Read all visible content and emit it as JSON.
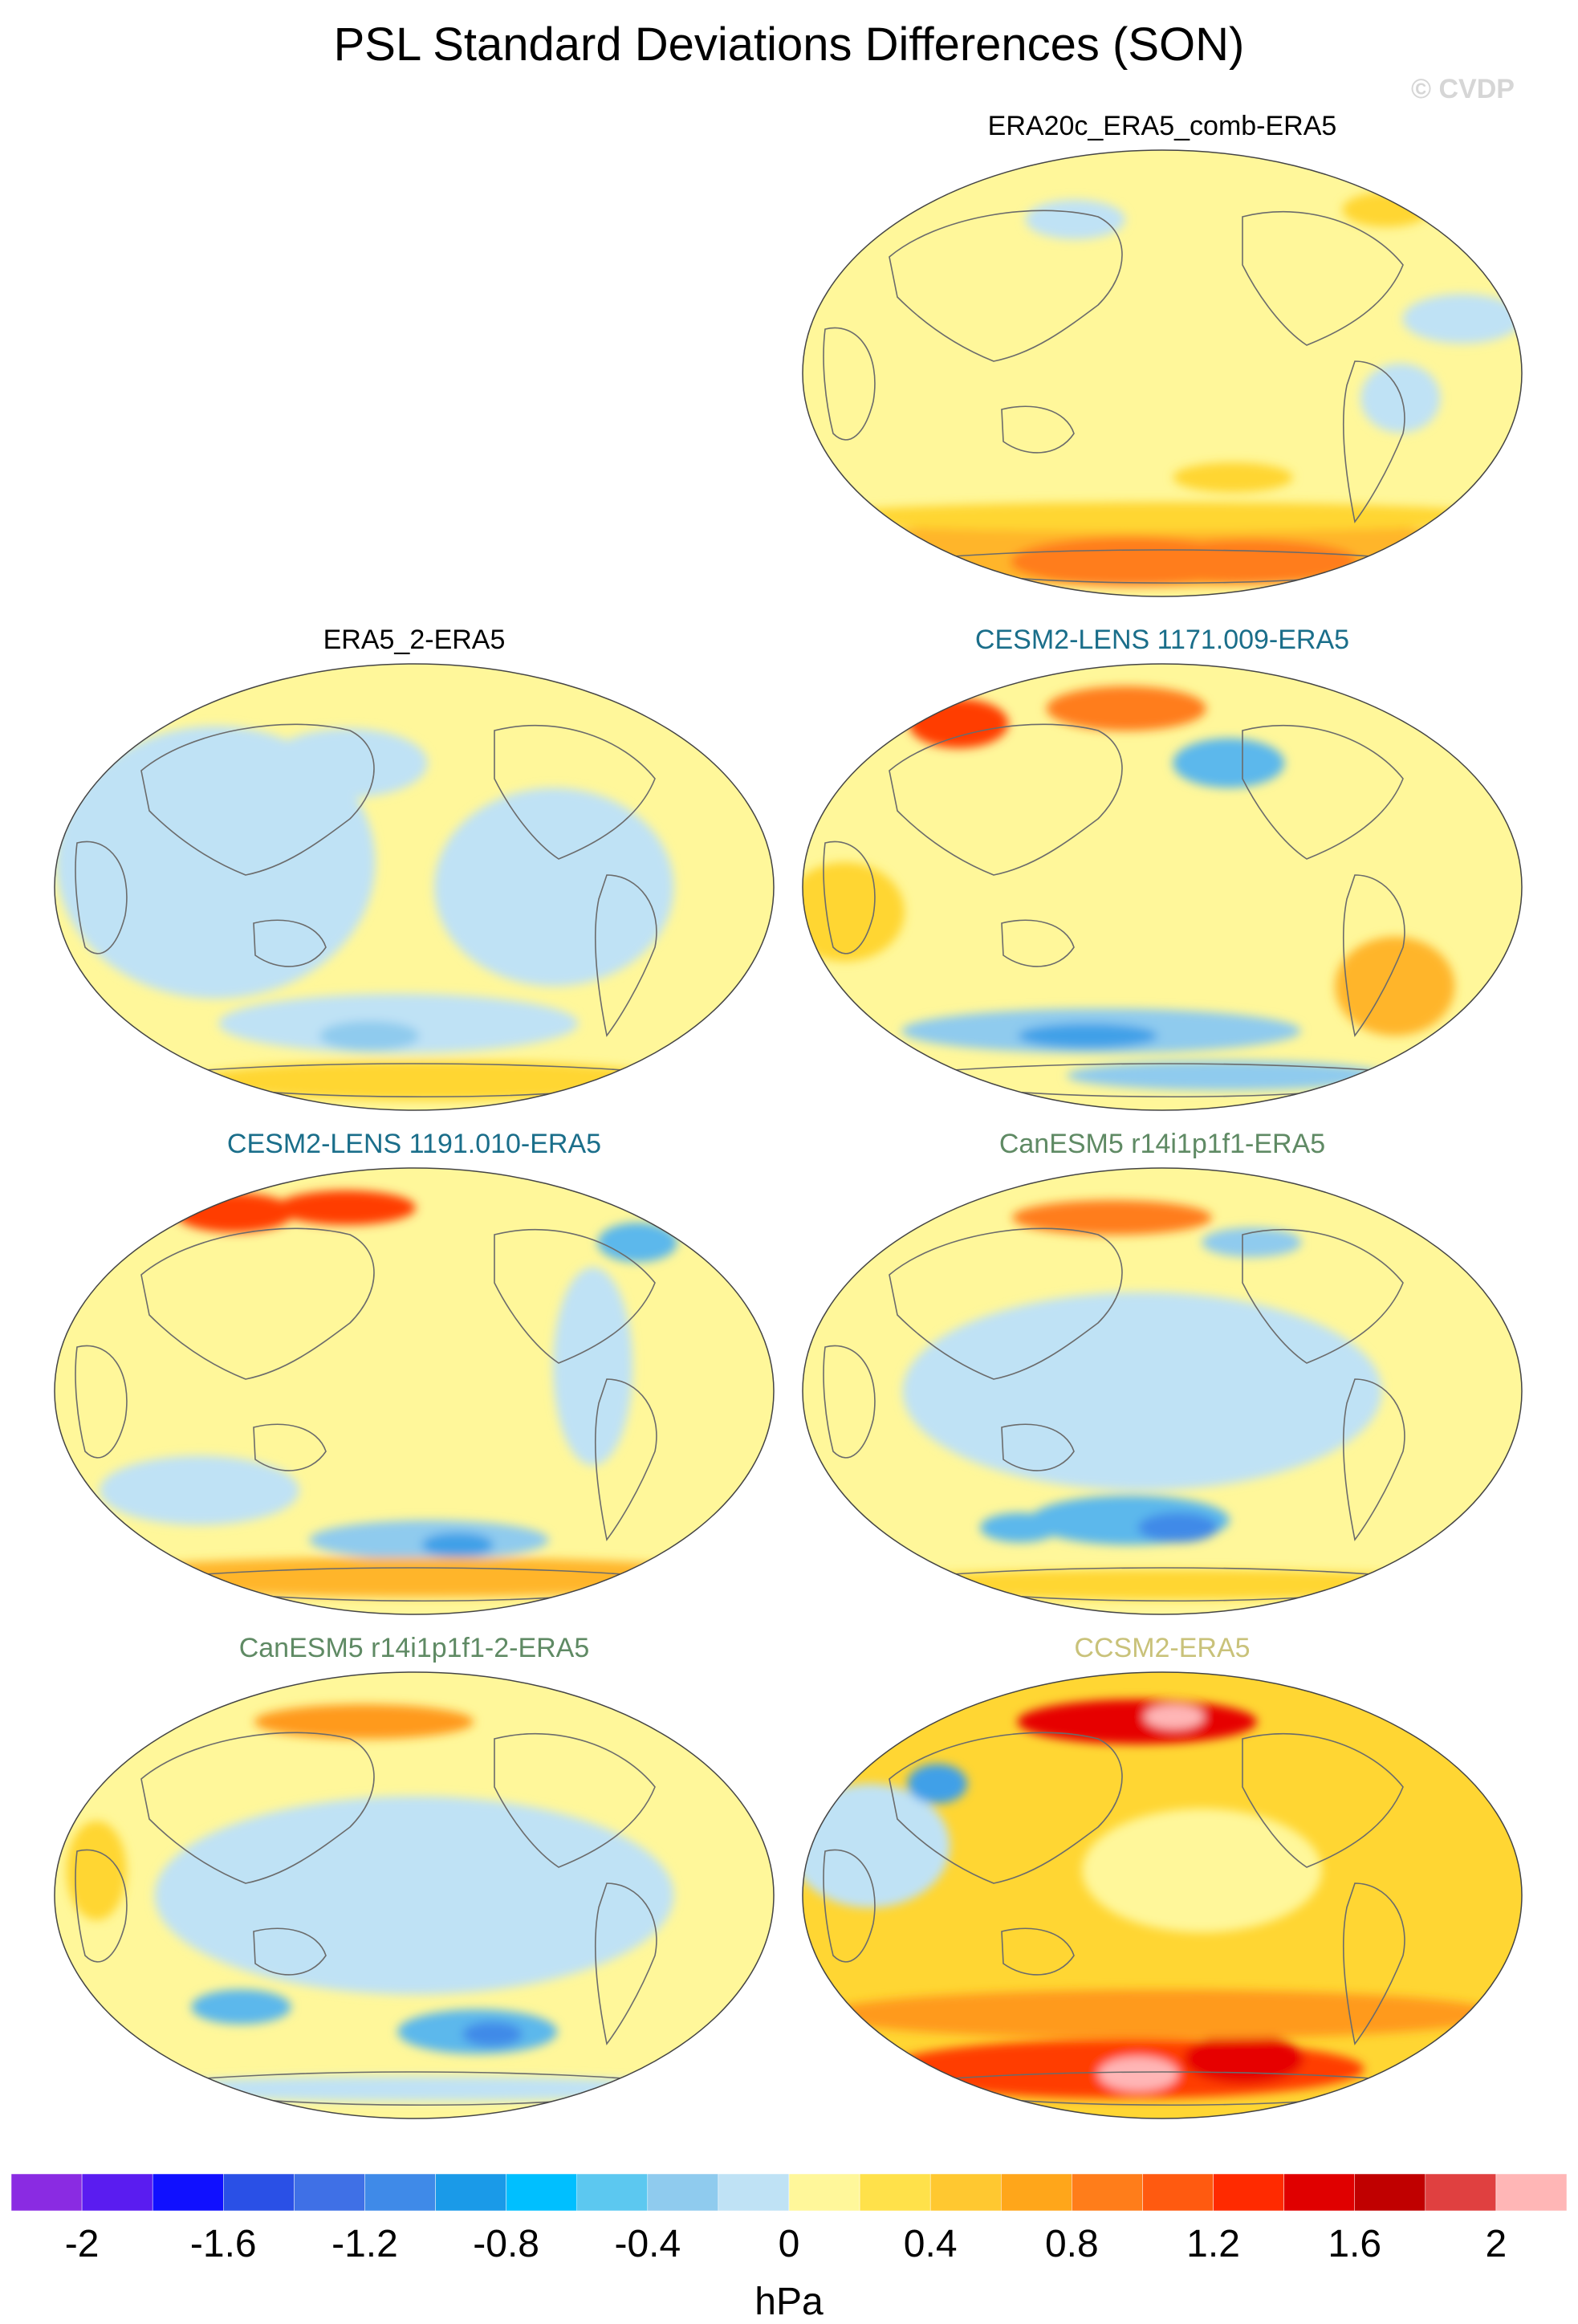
{
  "title": "PSL Standard Deviations Differences (SON)",
  "watermark": "© CVDP",
  "panels": [
    {
      "title": "ERA20c_ERA5_comb-ERA5",
      "title_color": "#000000",
      "base_color": "#fff79a",
      "blobs": [
        {
          "lon": 0,
          "lat": -72,
          "rx": 170,
          "ry": 14,
          "c": "#ffb52a"
        },
        {
          "lon": -30,
          "lat": -76,
          "rx": 60,
          "ry": 10,
          "c": "#ff7d1a"
        },
        {
          "lon": 80,
          "lat": -76,
          "rx": 55,
          "ry": 9,
          "c": "#ff7d1a"
        },
        {
          "lon": 0,
          "lat": -58,
          "rx": 175,
          "ry": 6,
          "c": "#ffd633"
        },
        {
          "lon": 155,
          "lat": 22,
          "rx": 30,
          "ry": 10,
          "c": "#bfe2f5"
        },
        {
          "lon": 120,
          "lat": -10,
          "rx": 20,
          "ry": 14,
          "c": "#bfe2f5"
        },
        {
          "lon": -60,
          "lat": 62,
          "rx": 25,
          "ry": 8,
          "c": "#bfe2f5"
        },
        {
          "lon": 165,
          "lat": 66,
          "rx": 22,
          "ry": 7,
          "c": "#ffd633"
        },
        {
          "lon": 40,
          "lat": -42,
          "rx": 30,
          "ry": 6,
          "c": "#ffd633"
        }
      ]
    },
    {
      "title": "ERA5_2-ERA5",
      "title_color": "#000000",
      "base_color": "#fff79a",
      "blobs": [
        {
          "lon": -100,
          "lat": 10,
          "rx": 80,
          "ry": 55,
          "c": "#bfe2f5"
        },
        {
          "lon": 70,
          "lat": 0,
          "rx": 60,
          "ry": 40,
          "c": "#bfe2f5"
        },
        {
          "lon": -10,
          "lat": -55,
          "rx": 90,
          "ry": 12,
          "c": "#bfe2f5"
        },
        {
          "lon": -30,
          "lat": -60,
          "rx": 25,
          "ry": 6,
          "c": "#8fcbee"
        },
        {
          "lon": 20,
          "lat": -78,
          "rx": 120,
          "ry": 8,
          "c": "#ffd633"
        },
        {
          "lon": -40,
          "lat": 50,
          "rx": 40,
          "ry": 14,
          "c": "#bfe2f5"
        }
      ]
    },
    {
      "title": "CESM2-LENS 1171.009-ERA5",
      "title_color": "#1a6e8a",
      "base_color": "#fff79a",
      "blobs": [
        {
          "lon": -150,
          "lat": 66,
          "rx": 25,
          "ry": 10,
          "c": "#ff3d00"
        },
        {
          "lon": -30,
          "lat": 72,
          "rx": 40,
          "ry": 9,
          "c": "#ff7d1a"
        },
        {
          "lon": -40,
          "lat": -58,
          "rx": 100,
          "ry": 9,
          "c": "#8fcbee"
        },
        {
          "lon": -50,
          "lat": -60,
          "rx": 35,
          "ry": 5,
          "c": "#3fa0e8"
        },
        {
          "lon": 130,
          "lat": -40,
          "rx": 30,
          "ry": 20,
          "c": "#ffb52a"
        },
        {
          "lon": 40,
          "lat": 50,
          "rx": 28,
          "ry": 10,
          "c": "#5cb8ec"
        },
        {
          "lon": -160,
          "lat": -10,
          "rx": 30,
          "ry": 20,
          "c": "#ffd633"
        },
        {
          "lon": 60,
          "lat": -76,
          "rx": 80,
          "ry": 6,
          "c": "#8fcbee"
        }
      ]
    },
    {
      "title": "CESM2-LENS 1191.010-ERA5",
      "title_color": "#1a6e8a",
      "base_color": "#fff79a",
      "blobs": [
        {
          "lon": -150,
          "lat": 72,
          "rx": 30,
          "ry": 8,
          "c": "#ff3d00"
        },
        {
          "lon": -60,
          "lat": 74,
          "rx": 35,
          "ry": 7,
          "c": "#ff3d00"
        },
        {
          "lon": -120,
          "lat": -40,
          "rx": 50,
          "ry": 14,
          "c": "#bfe2f5"
        },
        {
          "lon": 10,
          "lat": -60,
          "rx": 60,
          "ry": 8,
          "c": "#8fcbee"
        },
        {
          "lon": 30,
          "lat": -62,
          "rx": 18,
          "ry": 5,
          "c": "#3fa0e8"
        },
        {
          "lon": 0,
          "lat": -75,
          "rx": 170,
          "ry": 8,
          "c": "#ffb52a"
        },
        {
          "lon": 90,
          "lat": 10,
          "rx": 20,
          "ry": 40,
          "c": "#bfe2f5"
        },
        {
          "lon": 150,
          "lat": 60,
          "rx": 20,
          "ry": 8,
          "c": "#5cb8ec"
        }
      ]
    },
    {
      "title": "CanESM5 r14i1p1f1-ERA5",
      "title_color": "#5f8a64",
      "base_color": "#fff79a",
      "blobs": [
        {
          "lon": -10,
          "lat": 0,
          "rx": 120,
          "ry": 40,
          "c": "#bfe2f5"
        },
        {
          "lon": -20,
          "lat": -52,
          "rx": 50,
          "ry": 10,
          "c": "#5cb8ec"
        },
        {
          "lon": 10,
          "lat": -55,
          "rx": 20,
          "ry": 6,
          "c": "#3f8ae8"
        },
        {
          "lon": -90,
          "lat": -55,
          "rx": 20,
          "ry": 6,
          "c": "#5cb8ec"
        },
        {
          "lon": -40,
          "lat": 70,
          "rx": 50,
          "ry": 7,
          "c": "#ff7d1a"
        },
        {
          "lon": 60,
          "lat": 60,
          "rx": 25,
          "ry": 6,
          "c": "#8fcbee"
        },
        {
          "lon": 0,
          "lat": -78,
          "rx": 160,
          "ry": 6,
          "c": "#ffd633"
        }
      ]
    },
    {
      "title": "CanESM5 r14i1p1f1-2-ERA5",
      "title_color": "#5f8a64",
      "base_color": "#fff79a",
      "blobs": [
        {
          "lon": 0,
          "lat": 0,
          "rx": 130,
          "ry": 40,
          "c": "#bfe2f5"
        },
        {
          "lon": 40,
          "lat": -55,
          "rx": 40,
          "ry": 9,
          "c": "#5cb8ec"
        },
        {
          "lon": 50,
          "lat": -56,
          "rx": 15,
          "ry": 5,
          "c": "#3f8ae8"
        },
        {
          "lon": -100,
          "lat": -45,
          "rx": 25,
          "ry": 7,
          "c": "#5cb8ec"
        },
        {
          "lon": -40,
          "lat": 70,
          "rx": 55,
          "ry": 7,
          "c": "#ff9a1a"
        },
        {
          "lon": -160,
          "lat": 10,
          "rx": 15,
          "ry": 20,
          "c": "#ffd633"
        },
        {
          "lon": 0,
          "lat": -78,
          "rx": 150,
          "ry": 5,
          "c": "#bfe2f5"
        }
      ]
    },
    {
      "title": "CCSM2-ERA5",
      "title_color": "#c9c27a",
      "base_color": "#ffd633",
      "blobs": [
        {
          "lon": -20,
          "lat": 70,
          "rx": 60,
          "ry": 9,
          "c": "#e60000"
        },
        {
          "lon": 10,
          "lat": 72,
          "rx": 15,
          "ry": 5,
          "c": "#ffb6b6"
        },
        {
          "lon": -30,
          "lat": -70,
          "rx": 120,
          "ry": 12,
          "c": "#ff3d00"
        },
        {
          "lon": -20,
          "lat": -72,
          "rx": 20,
          "ry": 7,
          "c": "#ffb6b6"
        },
        {
          "lon": 60,
          "lat": -66,
          "rx": 30,
          "ry": 10,
          "c": "#e60000"
        },
        {
          "lon": -150,
          "lat": 20,
          "rx": 40,
          "ry": 25,
          "c": "#bfe2f5"
        },
        {
          "lon": -130,
          "lat": 45,
          "rx": 15,
          "ry": 8,
          "c": "#3fa0e8"
        },
        {
          "lon": 20,
          "lat": 10,
          "rx": 60,
          "ry": 25,
          "c": "#fff79a"
        },
        {
          "lon": 0,
          "lat": -48,
          "rx": 170,
          "ry": 10,
          "c": "#ff9a1a"
        }
      ]
    }
  ],
  "colorbar": {
    "colors": [
      "#8a2be2",
      "#5a1cf0",
      "#1010ff",
      "#2a50e6",
      "#3f70e6",
      "#3f8ae8",
      "#1a9ae8",
      "#00bfff",
      "#5cc8f0",
      "#8fcbee",
      "#bfe2f5",
      "#fff79a",
      "#ffe14a",
      "#ffc830",
      "#ffa61a",
      "#ff7d1a",
      "#ff5a10",
      "#ff2a00",
      "#e00000",
      "#c00000",
      "#e04040",
      "#ffb6b6"
    ],
    "tick_labels": [
      "-2",
      "-1.6",
      "-1.2",
      "-0.8",
      "-0.4",
      "0",
      "0.4",
      "0.8",
      "1.2",
      "1.6",
      "2"
    ],
    "units": "hPa"
  }
}
